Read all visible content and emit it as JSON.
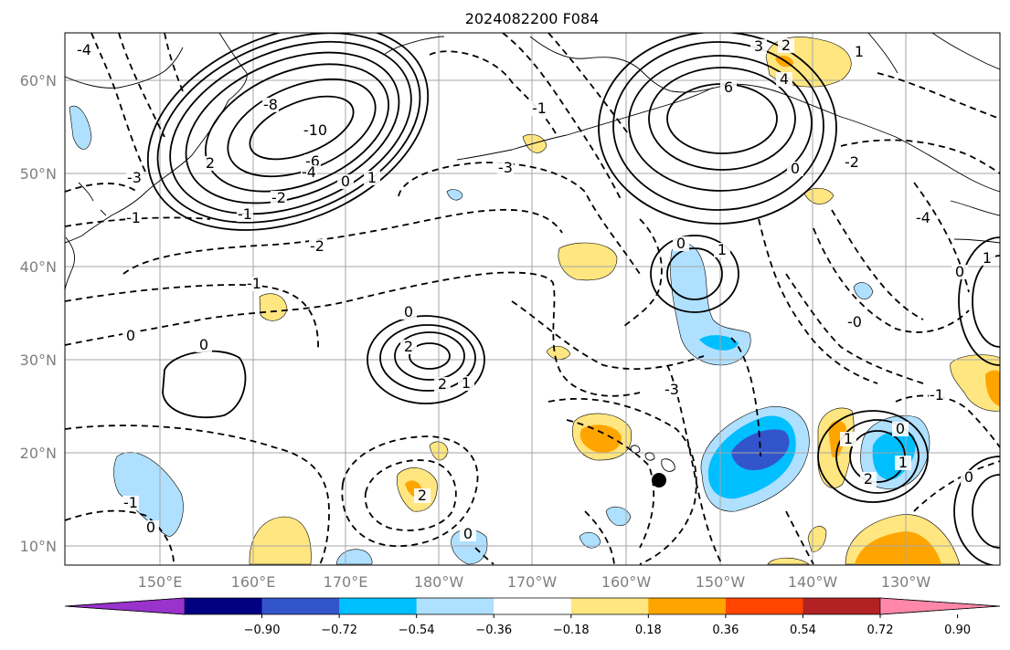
{
  "title": "2024082200 F084",
  "map": {
    "lat_labels": [
      "60°N",
      "50°N",
      "40°N",
      "30°N",
      "20°N",
      "10°N"
    ],
    "lon_labels": [
      "150°E",
      "160°E",
      "170°E",
      "180°W",
      "170°W",
      "160°W",
      "150°W",
      "140°W",
      "130°W"
    ],
    "contour_labels": {
      "low_west": [
        "-8",
        "-10",
        "-6",
        "-4",
        "-2",
        "-1",
        "0",
        "2",
        "1"
      ],
      "high_central": [
        "0",
        "2",
        "2",
        "1"
      ],
      "high_east": [
        "6",
        "4",
        "3",
        "0",
        "-2"
      ],
      "misc": [
        "-3",
        "-2",
        "-1",
        "0",
        "0",
        "-1",
        "1",
        "0",
        "-3",
        "-4",
        "2",
        "1",
        "-1",
        "0",
        "2",
        "-0",
        "0",
        "1",
        "2",
        "1",
        "0",
        "1",
        "0"
      ],
      "left_edge": [
        "-4",
        "-3",
        "-1",
        "0",
        "-1"
      ]
    },
    "marker": "storm-position"
  },
  "colorbar": {
    "ticks": [
      "−0.90",
      "−0.72",
      "−0.54",
      "−0.36",
      "−0.18",
      "0.18",
      "0.36",
      "0.54",
      "0.72",
      "0.90"
    ],
    "colors": [
      "#9933cc",
      "#000080",
      "#3355cc",
      "#00bfff",
      "#b0e0ff",
      "#ffffff",
      "#ffe680",
      "#ffa500",
      "#ff4500",
      "#b22222",
      "#ff88aa"
    ]
  }
}
